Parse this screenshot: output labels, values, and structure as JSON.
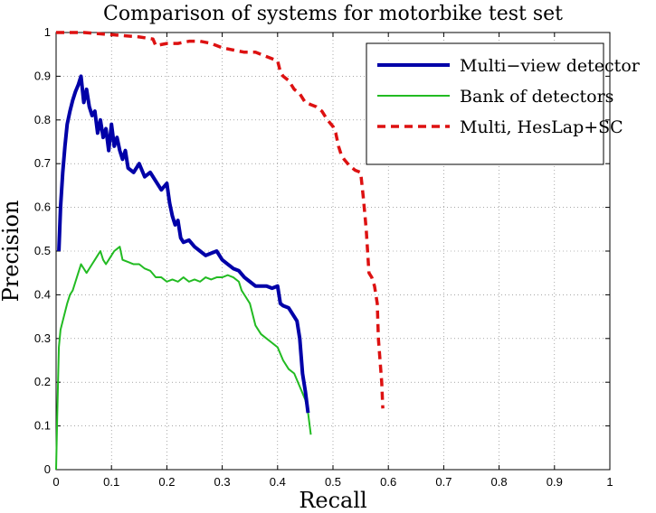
{
  "chart_data": {
    "type": "line",
    "title": "Comparison of systems for motorbike test set",
    "xlabel": "Recall",
    "ylabel": "Precision",
    "xlim": [
      0,
      1
    ],
    "ylim": [
      0,
      1
    ],
    "xticks": [
      "0",
      "0.1",
      "0.2",
      "0.3",
      "0.4",
      "0.5",
      "0.6",
      "0.7",
      "0.8",
      "0.9",
      "1"
    ],
    "yticks": [
      "0",
      "0.1",
      "0.2",
      "0.3",
      "0.4",
      "0.5",
      "0.6",
      "0.7",
      "0.8",
      "0.9",
      "1"
    ],
    "grid": true,
    "legend_position": "top-right",
    "series": [
      {
        "name": "Multi−view detector",
        "color": "#0000a8",
        "style": "solid-thick",
        "points": [
          [
            0.005,
            0.5
          ],
          [
            0.008,
            0.6
          ],
          [
            0.012,
            0.68
          ],
          [
            0.016,
            0.74
          ],
          [
            0.02,
            0.79
          ],
          [
            0.025,
            0.82
          ],
          [
            0.03,
            0.845
          ],
          [
            0.035,
            0.865
          ],
          [
            0.04,
            0.88
          ],
          [
            0.045,
            0.9
          ],
          [
            0.05,
            0.84
          ],
          [
            0.055,
            0.87
          ],
          [
            0.06,
            0.83
          ],
          [
            0.065,
            0.81
          ],
          [
            0.07,
            0.82
          ],
          [
            0.075,
            0.77
          ],
          [
            0.08,
            0.8
          ],
          [
            0.085,
            0.76
          ],
          [
            0.09,
            0.78
          ],
          [
            0.095,
            0.73
          ],
          [
            0.1,
            0.79
          ],
          [
            0.105,
            0.74
          ],
          [
            0.11,
            0.76
          ],
          [
            0.115,
            0.73
          ],
          [
            0.12,
            0.71
          ],
          [
            0.125,
            0.73
          ],
          [
            0.13,
            0.69
          ],
          [
            0.14,
            0.68
          ],
          [
            0.15,
            0.7
          ],
          [
            0.16,
            0.67
          ],
          [
            0.17,
            0.68
          ],
          [
            0.18,
            0.66
          ],
          [
            0.19,
            0.64
          ],
          [
            0.2,
            0.655
          ],
          [
            0.205,
            0.61
          ],
          [
            0.21,
            0.58
          ],
          [
            0.215,
            0.56
          ],
          [
            0.22,
            0.57
          ],
          [
            0.225,
            0.53
          ],
          [
            0.23,
            0.52
          ],
          [
            0.24,
            0.525
          ],
          [
            0.25,
            0.51
          ],
          [
            0.26,
            0.5
          ],
          [
            0.27,
            0.49
          ],
          [
            0.28,
            0.495
          ],
          [
            0.29,
            0.5
          ],
          [
            0.3,
            0.48
          ],
          [
            0.31,
            0.47
          ],
          [
            0.32,
            0.46
          ],
          [
            0.33,
            0.455
          ],
          [
            0.34,
            0.44
          ],
          [
            0.35,
            0.43
          ],
          [
            0.36,
            0.42
          ],
          [
            0.37,
            0.42
          ],
          [
            0.38,
            0.42
          ],
          [
            0.39,
            0.415
          ],
          [
            0.4,
            0.42
          ],
          [
            0.405,
            0.38
          ],
          [
            0.41,
            0.375
          ],
          [
            0.42,
            0.37
          ],
          [
            0.43,
            0.35
          ],
          [
            0.435,
            0.34
          ],
          [
            0.44,
            0.3
          ],
          [
            0.445,
            0.22
          ],
          [
            0.45,
            0.18
          ],
          [
            0.455,
            0.13
          ]
        ]
      },
      {
        "name": "Bank of detectors",
        "color": "#22bb22",
        "style": "solid",
        "points": [
          [
            0.0,
            0.0
          ],
          [
            0.002,
            0.12
          ],
          [
            0.005,
            0.28
          ],
          [
            0.008,
            0.32
          ],
          [
            0.012,
            0.34
          ],
          [
            0.016,
            0.36
          ],
          [
            0.02,
            0.38
          ],
          [
            0.025,
            0.4
          ],
          [
            0.03,
            0.41
          ],
          [
            0.035,
            0.43
          ],
          [
            0.04,
            0.45
          ],
          [
            0.045,
            0.47
          ],
          [
            0.05,
            0.46
          ],
          [
            0.055,
            0.45
          ],
          [
            0.06,
            0.46
          ],
          [
            0.065,
            0.47
          ],
          [
            0.07,
            0.48
          ],
          [
            0.075,
            0.49
          ],
          [
            0.08,
            0.5
          ],
          [
            0.085,
            0.48
          ],
          [
            0.09,
            0.47
          ],
          [
            0.095,
            0.48
          ],
          [
            0.1,
            0.49
          ],
          [
            0.105,
            0.5
          ],
          [
            0.11,
            0.505
          ],
          [
            0.115,
            0.51
          ],
          [
            0.12,
            0.48
          ],
          [
            0.13,
            0.475
          ],
          [
            0.14,
            0.47
          ],
          [
            0.15,
            0.47
          ],
          [
            0.16,
            0.46
          ],
          [
            0.17,
            0.455
          ],
          [
            0.18,
            0.44
          ],
          [
            0.19,
            0.44
          ],
          [
            0.2,
            0.43
          ],
          [
            0.21,
            0.435
          ],
          [
            0.22,
            0.43
          ],
          [
            0.23,
            0.44
          ],
          [
            0.24,
            0.43
          ],
          [
            0.25,
            0.435
          ],
          [
            0.26,
            0.43
          ],
          [
            0.27,
            0.44
          ],
          [
            0.28,
            0.435
          ],
          [
            0.29,
            0.44
          ],
          [
            0.3,
            0.44
          ],
          [
            0.31,
            0.445
          ],
          [
            0.32,
            0.44
          ],
          [
            0.33,
            0.43
          ],
          [
            0.335,
            0.41
          ],
          [
            0.34,
            0.4
          ],
          [
            0.35,
            0.38
          ],
          [
            0.36,
            0.33
          ],
          [
            0.37,
            0.31
          ],
          [
            0.38,
            0.3
          ],
          [
            0.39,
            0.29
          ],
          [
            0.4,
            0.28
          ],
          [
            0.41,
            0.25
          ],
          [
            0.42,
            0.23
          ],
          [
            0.43,
            0.22
          ],
          [
            0.44,
            0.19
          ],
          [
            0.45,
            0.16
          ],
          [
            0.455,
            0.13
          ],
          [
            0.46,
            0.08
          ]
        ]
      },
      {
        "name": "Multi, HesLap+SC",
        "color": "#dd1111",
        "style": "dashed",
        "points": [
          [
            0.0,
            1.0
          ],
          [
            0.05,
            1.0
          ],
          [
            0.1,
            0.995
          ],
          [
            0.15,
            0.99
          ],
          [
            0.175,
            0.985
          ],
          [
            0.18,
            0.97
          ],
          [
            0.2,
            0.975
          ],
          [
            0.22,
            0.975
          ],
          [
            0.24,
            0.98
          ],
          [
            0.26,
            0.98
          ],
          [
            0.28,
            0.975
          ],
          [
            0.29,
            0.97
          ],
          [
            0.3,
            0.965
          ],
          [
            0.32,
            0.96
          ],
          [
            0.34,
            0.955
          ],
          [
            0.36,
            0.955
          ],
          [
            0.37,
            0.95
          ],
          [
            0.38,
            0.945
          ],
          [
            0.39,
            0.94
          ],
          [
            0.4,
            0.935
          ],
          [
            0.405,
            0.91
          ],
          [
            0.41,
            0.9
          ],
          [
            0.42,
            0.89
          ],
          [
            0.43,
            0.87
          ],
          [
            0.44,
            0.86
          ],
          [
            0.45,
            0.84
          ],
          [
            0.46,
            0.835
          ],
          [
            0.47,
            0.83
          ],
          [
            0.48,
            0.82
          ],
          [
            0.49,
            0.8
          ],
          [
            0.5,
            0.785
          ],
          [
            0.505,
            0.77
          ],
          [
            0.51,
            0.74
          ],
          [
            0.515,
            0.72
          ],
          [
            0.52,
            0.71
          ],
          [
            0.53,
            0.695
          ],
          [
            0.54,
            0.685
          ],
          [
            0.55,
            0.68
          ],
          [
            0.555,
            0.62
          ],
          [
            0.56,
            0.55
          ],
          [
            0.565,
            0.45
          ],
          [
            0.57,
            0.44
          ],
          [
            0.575,
            0.42
          ],
          [
            0.58,
            0.38
          ],
          [
            0.582,
            0.3
          ],
          [
            0.585,
            0.25
          ],
          [
            0.588,
            0.2
          ],
          [
            0.59,
            0.14
          ]
        ]
      }
    ]
  }
}
